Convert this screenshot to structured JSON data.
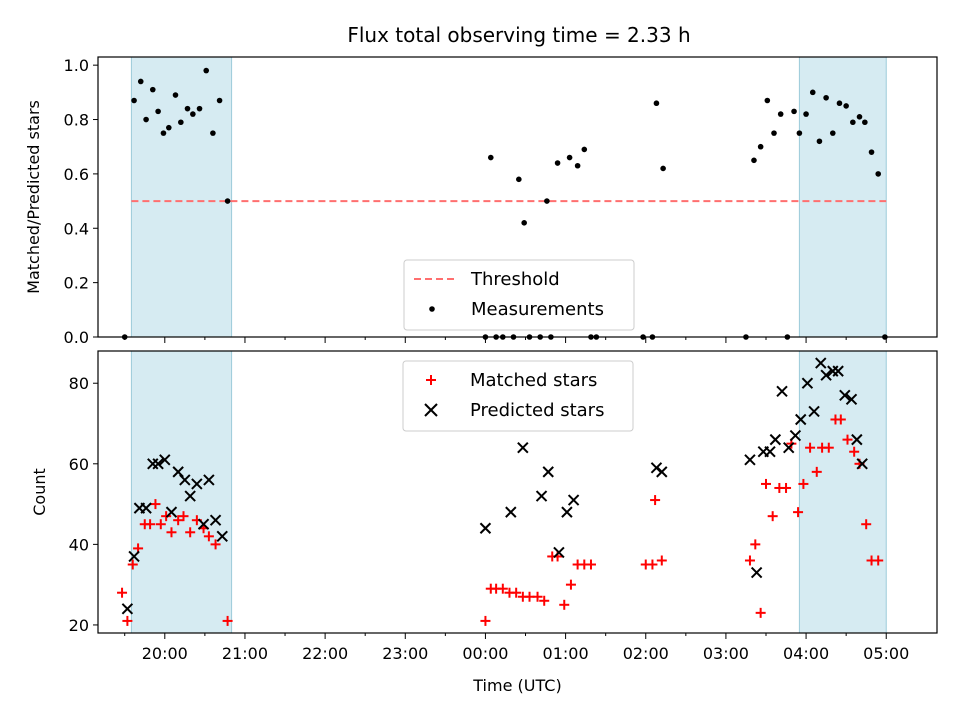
{
  "title": "Flux total observing time = 2.33 h",
  "chart_data": [
    {
      "type": "scatter",
      "ylabel": "Matched/Predicted stars",
      "ylim": [
        0,
        1.03
      ],
      "yticks": [
        0.0,
        0.2,
        0.4,
        0.6,
        0.8,
        1.0
      ],
      "ytick_labels": [
        "0.0",
        "0.2",
        "0.4",
        "0.6",
        "0.8",
        "1.0"
      ],
      "legend_placement": "lower center",
      "threshold": {
        "name": "Threshold",
        "value": 0.5,
        "x_start": "19:35",
        "x_end": "05:00",
        "color": "#ff6f6f"
      },
      "shaded_regions": [
        {
          "start": "19:35",
          "end": "20:50"
        },
        {
          "start": "03:55",
          "end": "05:00"
        }
      ],
      "series": [
        {
          "name": "Measurements",
          "marker": "dot",
          "color": "#000000",
          "points": [
            [
              "19:30",
              0.0
            ],
            [
              "19:37",
              0.87
            ],
            [
              "19:42",
              0.94
            ],
            [
              "19:46",
              0.8
            ],
            [
              "19:51",
              0.91
            ],
            [
              "19:55",
              0.83
            ],
            [
              "19:59",
              0.75
            ],
            [
              "20:03",
              0.77
            ],
            [
              "20:08",
              0.89
            ],
            [
              "20:12",
              0.79
            ],
            [
              "20:17",
              0.84
            ],
            [
              "20:21",
              0.82
            ],
            [
              "20:26",
              0.84
            ],
            [
              "20:31",
              0.98
            ],
            [
              "20:36",
              0.75
            ],
            [
              "20:41",
              0.87
            ],
            [
              "20:47",
              0.5
            ],
            [
              "00:00",
              0.0
            ],
            [
              "00:04",
              0.66
            ],
            [
              "00:08",
              0.0
            ],
            [
              "00:13",
              0.0
            ],
            [
              "00:21",
              0.0
            ],
            [
              "00:25",
              0.58
            ],
            [
              "00:29",
              0.42
            ],
            [
              "00:33",
              0.0
            ],
            [
              "00:41",
              0.0
            ],
            [
              "00:46",
              0.5
            ],
            [
              "00:49",
              0.0
            ],
            [
              "00:54",
              0.64
            ],
            [
              "01:03",
              0.66
            ],
            [
              "01:09",
              0.63
            ],
            [
              "01:14",
              0.69
            ],
            [
              "01:19",
              0.0
            ],
            [
              "01:23",
              0.0
            ],
            [
              "01:58",
              0.0
            ],
            [
              "02:05",
              0.0
            ],
            [
              "02:08",
              0.86
            ],
            [
              "02:13",
              0.62
            ],
            [
              "03:15",
              0.0
            ],
            [
              "03:21",
              0.65
            ],
            [
              "03:26",
              0.7
            ],
            [
              "03:31",
              0.87
            ],
            [
              "03:36",
              0.75
            ],
            [
              "03:41",
              0.82
            ],
            [
              "03:46",
              0.0
            ],
            [
              "03:51",
              0.83
            ],
            [
              "03:55",
              0.75
            ],
            [
              "04:00",
              0.82
            ],
            [
              "04:05",
              0.9
            ],
            [
              "04:10",
              0.72
            ],
            [
              "04:15",
              0.88
            ],
            [
              "04:20",
              0.75
            ],
            [
              "04:25",
              0.86
            ],
            [
              "04:30",
              0.85
            ],
            [
              "04:35",
              0.79
            ],
            [
              "04:40",
              0.81
            ],
            [
              "04:44",
              0.79
            ],
            [
              "04:49",
              0.68
            ],
            [
              "04:54",
              0.6
            ],
            [
              "04:59",
              0.0
            ]
          ]
        }
      ]
    },
    {
      "type": "scatter",
      "xlabel": "Time (UTC)",
      "ylabel": "Count",
      "ylim": [
        18,
        88
      ],
      "yticks": [
        20,
        40,
        60,
        80
      ],
      "ytick_labels": [
        "20",
        "40",
        "60",
        "80"
      ],
      "x_ticks": [
        "19:30",
        "20:00",
        "20:30",
        "21:00",
        "21:30",
        "22:00",
        "22:30",
        "23:00",
        "23:30",
        "00:00",
        "00:30",
        "01:00",
        "01:30",
        "02:00",
        "02:30",
        "03:00",
        "03:30",
        "04:00",
        "04:30",
        "05:00"
      ],
      "x_tick_labels": [
        "20:00",
        "21:00",
        "22:00",
        "23:00",
        "00:00",
        "01:00",
        "02:00",
        "03:00",
        "04:00",
        "05:00"
      ],
      "legend_placement": "upper center",
      "shaded_regions": [
        {
          "start": "19:35",
          "end": "20:50"
        },
        {
          "start": "03:55",
          "end": "05:00"
        }
      ],
      "series": [
        {
          "name": "Matched stars",
          "marker": "plus",
          "color": "#ff0000",
          "points": [
            [
              "19:28",
              28
            ],
            [
              "19:32",
              21
            ],
            [
              "19:36",
              35
            ],
            [
              "19:40",
              39
            ],
            [
              "19:45",
              45
            ],
            [
              "19:49",
              45
            ],
            [
              "19:53",
              50
            ],
            [
              "19:57",
              45
            ],
            [
              "20:01",
              47
            ],
            [
              "20:05",
              43
            ],
            [
              "20:10",
              46
            ],
            [
              "20:14",
              47
            ],
            [
              "20:19",
              43
            ],
            [
              "20:24",
              46
            ],
            [
              "20:29",
              44
            ],
            [
              "20:33",
              42
            ],
            [
              "20:38",
              40
            ],
            [
              "20:47",
              21
            ],
            [
              "00:00",
              21
            ],
            [
              "00:04",
              29
            ],
            [
              "00:08",
              29
            ],
            [
              "00:13",
              29
            ],
            [
              "00:18",
              28
            ],
            [
              "00:23",
              28
            ],
            [
              "00:28",
              27
            ],
            [
              "00:33",
              27
            ],
            [
              "00:39",
              27
            ],
            [
              "00:44",
              26
            ],
            [
              "00:50",
              37
            ],
            [
              "00:54",
              37
            ],
            [
              "00:59",
              25
            ],
            [
              "01:04",
              30
            ],
            [
              "01:09",
              35
            ],
            [
              "01:14",
              35
            ],
            [
              "01:19",
              35
            ],
            [
              "02:00",
              35
            ],
            [
              "02:05",
              35
            ],
            [
              "02:07",
              51
            ],
            [
              "02:12",
              36
            ],
            [
              "03:18",
              36
            ],
            [
              "03:22",
              40
            ],
            [
              "03:26",
              23
            ],
            [
              "03:30",
              55
            ],
            [
              "03:35",
              47
            ],
            [
              "03:40",
              54
            ],
            [
              "03:45",
              54
            ],
            [
              "03:49",
              65
            ],
            [
              "03:54",
              48
            ],
            [
              "03:58",
              55
            ],
            [
              "04:03",
              64
            ],
            [
              "04:08",
              58
            ],
            [
              "04:12",
              64
            ],
            [
              "04:17",
              64
            ],
            [
              "04:22",
              71
            ],
            [
              "04:26",
              71
            ],
            [
              "04:31",
              66
            ],
            [
              "04:36",
              63
            ],
            [
              "04:40",
              60
            ],
            [
              "04:45",
              45
            ],
            [
              "04:49",
              36
            ],
            [
              "04:54",
              36
            ]
          ]
        },
        {
          "name": "Predicted stars",
          "marker": "x",
          "color": "#000000",
          "points": [
            [
              "19:32",
              24
            ],
            [
              "19:37",
              37
            ],
            [
              "19:41",
              49
            ],
            [
              "19:46",
              49
            ],
            [
              "19:51",
              60
            ],
            [
              "19:55",
              60
            ],
            [
              "20:00",
              61
            ],
            [
              "20:05",
              48
            ],
            [
              "20:10",
              58
            ],
            [
              "20:15",
              56
            ],
            [
              "20:19",
              52
            ],
            [
              "20:24",
              55
            ],
            [
              "20:29",
              45
            ],
            [
              "20:33",
              56
            ],
            [
              "20:38",
              46
            ],
            [
              "20:43",
              42
            ],
            [
              "00:00",
              44
            ],
            [
              "00:19",
              48
            ],
            [
              "00:28",
              64
            ],
            [
              "00:42",
              52
            ],
            [
              "00:47",
              58
            ],
            [
              "00:55",
              38
            ],
            [
              "01:01",
              48
            ],
            [
              "01:06",
              51
            ],
            [
              "02:08",
              59
            ],
            [
              "02:12",
              58
            ],
            [
              "03:18",
              61
            ],
            [
              "03:23",
              33
            ],
            [
              "03:28",
              63
            ],
            [
              "03:33",
              63
            ],
            [
              "03:37",
              66
            ],
            [
              "03:42",
              78
            ],
            [
              "03:47",
              64
            ],
            [
              "03:52",
              67
            ],
            [
              "03:56",
              71
            ],
            [
              "04:01",
              80
            ],
            [
              "04:06",
              73
            ],
            [
              "04:11",
              85
            ],
            [
              "04:15",
              82
            ],
            [
              "04:20",
              83
            ],
            [
              "04:24",
              83
            ],
            [
              "04:29",
              77
            ],
            [
              "04:34",
              76
            ],
            [
              "04:38",
              66
            ],
            [
              "04:42",
              60
            ]
          ]
        }
      ]
    }
  ]
}
